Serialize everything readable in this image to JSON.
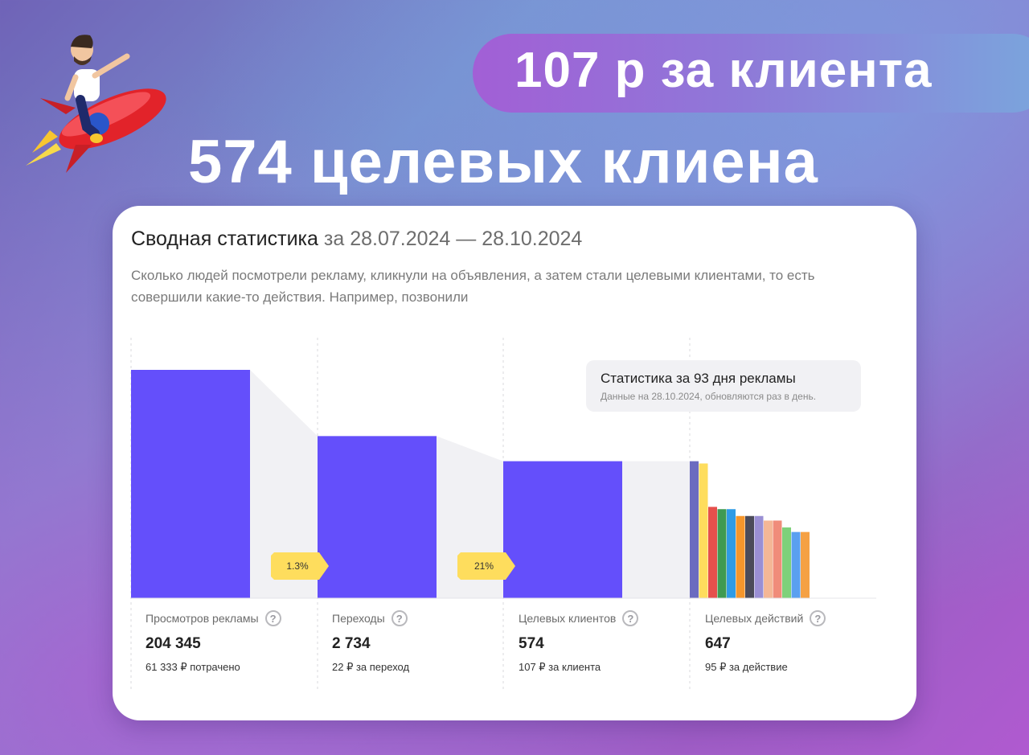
{
  "headline": {
    "price": "107 р за клиента",
    "clients": "574 целевых клиена"
  },
  "card": {
    "title": "Сводная статистика",
    "period": "за 28.07.2024 — 28.10.2024",
    "description": "Сколько людей посмотрели рекламу, кликнули на объявления, а затем стали целевыми клиентами, то есть совершили какие-то действия. Например, позвонили"
  },
  "tooltip": {
    "title": "Статистика за 93 дня рекламы",
    "subtitle": "Данные на 28.10.2024, обновляются раз в день."
  },
  "metrics": [
    {
      "label": "Просмотров рекламы",
      "value": "204 345",
      "sub": "61 333 ₽ потрачено"
    },
    {
      "label": "Переходы",
      "value": "2 734",
      "sub": "22 ₽ за переход"
    },
    {
      "label": "Целевых клиентов",
      "value": "574",
      "sub": "107 ₽ за клиента"
    },
    {
      "label": "Целевых действий",
      "value": "647",
      "sub": "95 ₽ за действие"
    }
  ],
  "conversion_badges": [
    "1.3%",
    "21%"
  ],
  "help_icon_glyph": "?",
  "colors": {
    "funnel_bar": "#644ffb",
    "badge": "#fedd5d",
    "funnel_shadow": "#f1f1f4"
  },
  "chart_data": {
    "type": "bar",
    "title": "",
    "funnel_levels": [
      1.0,
      0.71,
      0.6
    ],
    "actions_breakdown": [
      {
        "color": "#6b6bc0",
        "level": 0.6
      },
      {
        "color": "#fedd5d",
        "level": 0.59
      },
      {
        "color": "#e5504c",
        "level": 0.4
      },
      {
        "color": "#3f9a52",
        "level": 0.39
      },
      {
        "color": "#2f9be5",
        "level": 0.39
      },
      {
        "color": "#f5962b",
        "level": 0.36
      },
      {
        "color": "#4b4b5a",
        "level": 0.36
      },
      {
        "color": "#9a8fd4",
        "level": 0.36
      },
      {
        "color": "#f4b796",
        "level": 0.34
      },
      {
        "color": "#f08c7a",
        "level": 0.34
      },
      {
        "color": "#7ed17a",
        "level": 0.31
      },
      {
        "color": "#5aa0f0",
        "level": 0.29
      },
      {
        "color": "#f5a144",
        "level": 0.29
      }
    ]
  }
}
